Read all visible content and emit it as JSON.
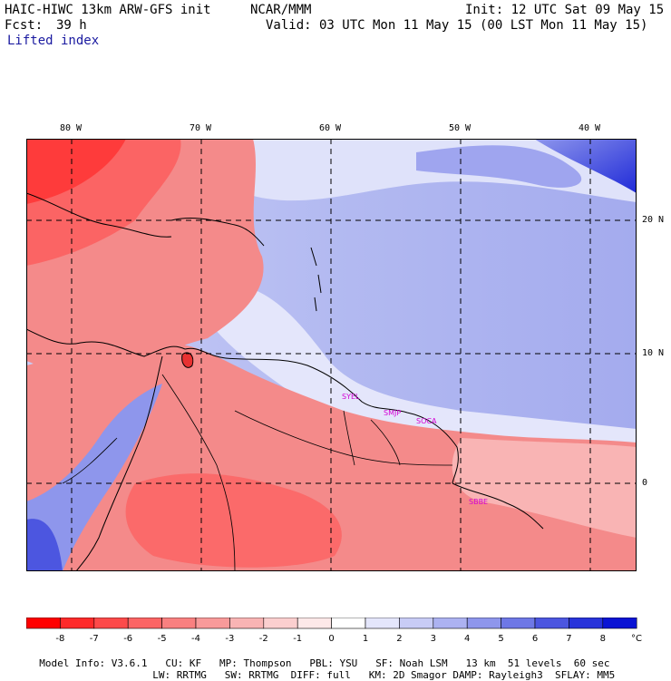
{
  "header": {
    "model": "HAIC-HIWC 13km ARW-GFS init",
    "org": "NCAR/MMM",
    "init": "Init: 12 UTC Sat 09 May 15",
    "fcst_label": "Fcst:",
    "fcst_value": "39 h",
    "valid": "Valid: 03 UTC Mon 11 May 15 (00 LST Mon 11 May 15)",
    "field": "Lifted index"
  },
  "axes": {
    "lon_labels": [
      "80 W",
      "70 W",
      "60 W",
      "50 W",
      "40 W"
    ],
    "lat_labels": [
      "20 N",
      "10 N",
      "0"
    ]
  },
  "stations": [
    "SYEL",
    "SMJP",
    "SOCA",
    "SBBE"
  ],
  "colorbar": {
    "ticks": [
      "-8",
      "-7",
      "-6",
      "-5",
      "-4",
      "-3",
      "-2",
      "-1",
      "0",
      "1",
      "2",
      "3",
      "4",
      "5",
      "6",
      "7",
      "8"
    ],
    "unit": "°C",
    "colors": [
      "#ff0000",
      "#fe2a2a",
      "#fd4a4a",
      "#fb6464",
      "#f98080",
      "#f89a9a",
      "#f9b4b4",
      "#fbcfcf",
      "#fde8e8",
      "#ffffff",
      "#e4e6fb",
      "#c8ccf6",
      "#acb2f1",
      "#8e96ec",
      "#6e78e6",
      "#4c56e0",
      "#2833da",
      "#0a14d4"
    ],
    "land_color": "#f48a8a",
    "ocean_color": "#b3baf1"
  },
  "footer": {
    "line1": [
      "Model Info: V3.6.1",
      "CU: KF",
      "MP: Thompson",
      "PBL: YSU",
      "SF: Noah LSM",
      "13 km",
      "51 levels",
      "60 sec"
    ],
    "line2": [
      "LW: RRTMG",
      "SW: RRTMG",
      "DIFF: full",
      "KM: 2D Smagor",
      "DAMP: Rayleigh3",
      "SFLAY: MM5"
    ]
  }
}
